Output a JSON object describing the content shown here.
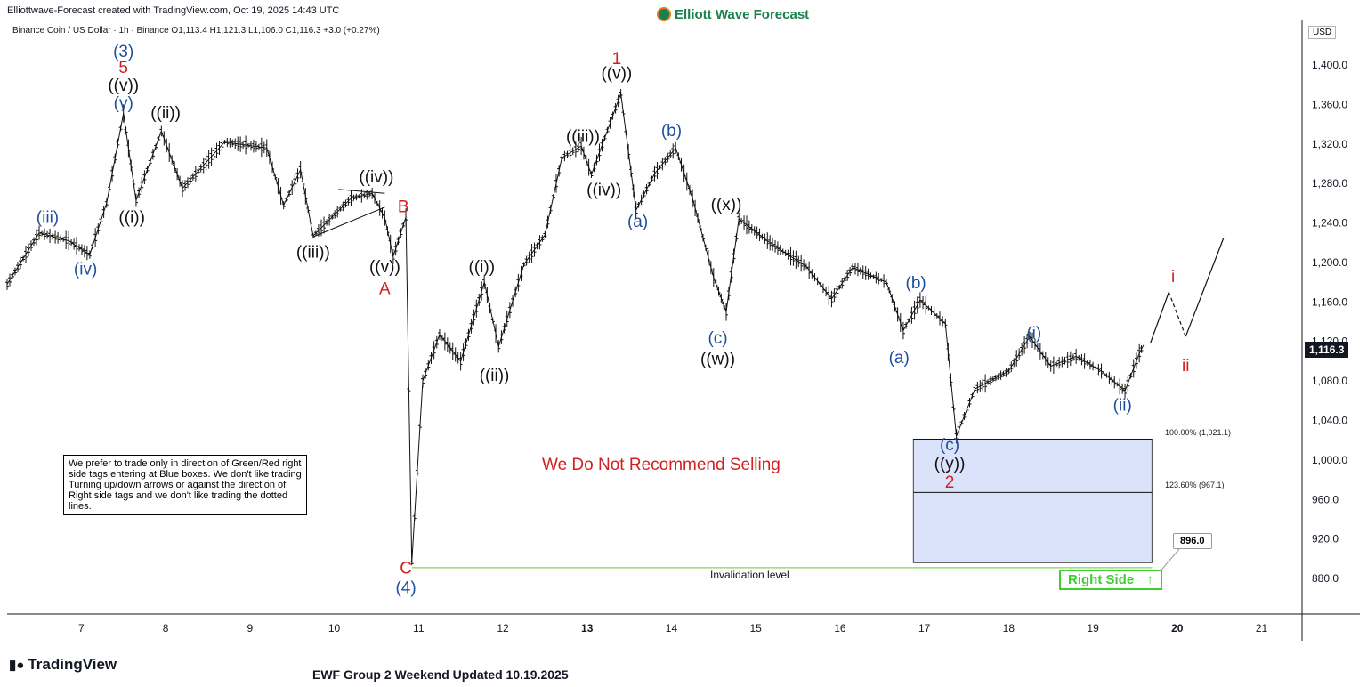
{
  "header": {
    "created_by": "Elliottwave-Forecast created with TradingView.com, Oct 19, 2025 14:43 UTC",
    "brand": "Elliott Wave Forecast",
    "symbol_line": "Binance Coin / US Dollar · 1h · Binance  O1,113.4  H1,121.3  L1,106.0  C1,116.3  +3.0 (+0.27%)"
  },
  "price_axis": {
    "currency": "USD",
    "last_price": "1,116.3"
  },
  "annotations": {
    "disclaimer": "We prefer to trade only in direction of Green/Red right side tags entering at Blue boxes. We don't like trading Turning up/down arrows or against the direction of Right side tags and we don't like trading the dotted lines.",
    "headline": "We Do Not Recommend Selling",
    "invalidation": "Invalidation level",
    "fib_100": "100.00% (1,021.1)",
    "fib_123": "123.60% (967.1)",
    "target": "896.0",
    "right_side": "Right Side",
    "right_side_arrow": "up-arrow-icon"
  },
  "footer": {
    "tv_logo": "TradingView",
    "update": "EWF Group 2 Weekend Updated 10.19.2025"
  },
  "colors": {
    "wave_blue": "#1f4e9c",
    "wave_red": "#d11f1f",
    "wave_black": "#111111",
    "blue_box": "#dbe3fb",
    "right_side_green": "#3ccf2e",
    "invalidation_line": "#7ed957"
  },
  "chart_data": {
    "type": "ohlc-line",
    "title": "Binance Coin / US Dollar · 1h · Binance",
    "xlabel": "",
    "ylabel": "",
    "x_ticks": [
      "7",
      "8",
      "9",
      "10",
      "11",
      "12",
      "13",
      "14",
      "15",
      "16",
      "17",
      "18",
      "19",
      "20",
      "21"
    ],
    "x_range_day": [
      6.12,
      21.48
    ],
    "y_ticks": [
      880,
      920,
      960,
      1000,
      1040,
      1080,
      1120,
      1160,
      1200,
      1240,
      1280,
      1320,
      1360,
      1400
    ],
    "y_tick_labels": [
      "880.0",
      "920.0",
      "960.0",
      "1,000.0",
      "1,040.0",
      "1,080.0",
      "1,120.0",
      "1,160.0",
      "1,200.0",
      "1,240.0",
      "1,280.0",
      "1,320.0",
      "1,360.0",
      "1,400.0"
    ],
    "ylim": [
      844,
      1446
    ],
    "grid": false,
    "price_path": [
      {
        "day": 6.12,
        "price": 1178
      },
      {
        "day": 6.5,
        "price": 1230
      },
      {
        "day": 6.85,
        "price": 1222
      },
      {
        "day": 7.1,
        "price": 1208
      },
      {
        "day": 7.3,
        "price": 1260
      },
      {
        "day": 7.5,
        "price": 1351
      },
      {
        "day": 7.65,
        "price": 1263
      },
      {
        "day": 7.95,
        "price": 1333
      },
      {
        "day": 8.2,
        "price": 1275
      },
      {
        "day": 8.7,
        "price": 1322
      },
      {
        "day": 9.2,
        "price": 1316
      },
      {
        "day": 9.4,
        "price": 1258
      },
      {
        "day": 9.6,
        "price": 1294
      },
      {
        "day": 9.75,
        "price": 1227
      },
      {
        "day": 10.2,
        "price": 1265
      },
      {
        "day": 10.45,
        "price": 1270
      },
      {
        "day": 10.6,
        "price": 1245
      },
      {
        "day": 10.7,
        "price": 1206
      },
      {
        "day": 10.85,
        "price": 1246
      },
      {
        "day": 10.92,
        "price": 896
      },
      {
        "day": 11.05,
        "price": 1080
      },
      {
        "day": 11.25,
        "price": 1127
      },
      {
        "day": 11.5,
        "price": 1100
      },
      {
        "day": 11.78,
        "price": 1180
      },
      {
        "day": 11.95,
        "price": 1115
      },
      {
        "day": 12.25,
        "price": 1198
      },
      {
        "day": 12.5,
        "price": 1228
      },
      {
        "day": 12.7,
        "price": 1306
      },
      {
        "day": 12.93,
        "price": 1318
      },
      {
        "day": 13.05,
        "price": 1289
      },
      {
        "day": 13.4,
        "price": 1371
      },
      {
        "day": 13.58,
        "price": 1253
      },
      {
        "day": 13.8,
        "price": 1290
      },
      {
        "day": 14.05,
        "price": 1316
      },
      {
        "day": 14.25,
        "price": 1265
      },
      {
        "day": 14.5,
        "price": 1185
      },
      {
        "day": 14.65,
        "price": 1150
      },
      {
        "day": 14.8,
        "price": 1244
      },
      {
        "day": 15.2,
        "price": 1218
      },
      {
        "day": 15.6,
        "price": 1196
      },
      {
        "day": 15.9,
        "price": 1163
      },
      {
        "day": 16.15,
        "price": 1195
      },
      {
        "day": 16.55,
        "price": 1180
      },
      {
        "day": 16.75,
        "price": 1131
      },
      {
        "day": 16.95,
        "price": 1162
      },
      {
        "day": 17.25,
        "price": 1138
      },
      {
        "day": 17.38,
        "price": 1024
      },
      {
        "day": 17.6,
        "price": 1072
      },
      {
        "day": 18.0,
        "price": 1090
      },
      {
        "day": 18.25,
        "price": 1125
      },
      {
        "day": 18.5,
        "price": 1095
      },
      {
        "day": 18.8,
        "price": 1105
      },
      {
        "day": 19.1,
        "price": 1090
      },
      {
        "day": 19.38,
        "price": 1070
      },
      {
        "day": 19.55,
        "price": 1108
      },
      {
        "day": 19.6,
        "price": 1116.3
      }
    ],
    "projection": [
      {
        "day": 19.68,
        "price": 1118
      },
      {
        "day": 19.9,
        "price": 1170
      },
      {
        "day": 20.1,
        "price": 1125
      },
      {
        "day": 20.55,
        "price": 1225
      }
    ],
    "triangle": {
      "upper": [
        {
          "day": 10.05,
          "price": 1274
        },
        {
          "day": 10.6,
          "price": 1270
        }
      ],
      "lower": [
        {
          "day": 9.75,
          "price": 1226
        },
        {
          "day": 10.6,
          "price": 1256
        }
      ]
    },
    "blue_box": {
      "day_start": 16.87,
      "day_end": 19.7,
      "price_high": 1021.1,
      "price_low": 896.0
    },
    "fib_levels": [
      1021.1,
      967.1
    ],
    "invalidation_level": 891,
    "wave_labels": [
      {
        "text": "(3)",
        "day": 7.5,
        "price": 1408,
        "color": "blue"
      },
      {
        "text": "5",
        "day": 7.5,
        "price": 1392,
        "color": "red"
      },
      {
        "text": "((v))",
        "day": 7.5,
        "price": 1374,
        "color": "black"
      },
      {
        "text": "(v)",
        "day": 7.5,
        "price": 1356,
        "color": "blue"
      },
      {
        "text": "((ii))",
        "day": 8.0,
        "price": 1346,
        "color": "black"
      },
      {
        "text": "(iii)",
        "day": 6.6,
        "price": 1240,
        "color": "blue"
      },
      {
        "text": "(iv)",
        "day": 7.05,
        "price": 1188,
        "color": "blue"
      },
      {
        "text": "((i))",
        "day": 7.6,
        "price": 1240,
        "color": "black"
      },
      {
        "text": "((iii))",
        "day": 9.75,
        "price": 1205,
        "color": "black"
      },
      {
        "text": "((iv))",
        "day": 10.5,
        "price": 1281,
        "color": "black"
      },
      {
        "text": "B",
        "day": 10.82,
        "price": 1251,
        "color": "red"
      },
      {
        "text": "((v))",
        "day": 10.6,
        "price": 1190,
        "color": "black"
      },
      {
        "text": "A",
        "day": 10.6,
        "price": 1168,
        "color": "red"
      },
      {
        "text": "C",
        "day": 10.85,
        "price": 885,
        "color": "red"
      },
      {
        "text": "(4)",
        "day": 10.85,
        "price": 865,
        "color": "blue"
      },
      {
        "text": "((i))",
        "day": 11.75,
        "price": 1190,
        "color": "black"
      },
      {
        "text": "((ii))",
        "day": 11.9,
        "price": 1080,
        "color": "black"
      },
      {
        "text": "((iii))",
        "day": 12.95,
        "price": 1322,
        "color": "black"
      },
      {
        "text": "((iv))",
        "day": 13.2,
        "price": 1268,
        "color": "black"
      },
      {
        "text": "1",
        "day": 13.35,
        "price": 1401,
        "color": "red"
      },
      {
        "text": "((v))",
        "day": 13.35,
        "price": 1386,
        "color": "black"
      },
      {
        "text": "(a)",
        "day": 13.6,
        "price": 1236,
        "color": "blue"
      },
      {
        "text": "(b)",
        "day": 14.0,
        "price": 1328,
        "color": "blue"
      },
      {
        "text": "((x))",
        "day": 14.65,
        "price": 1253,
        "color": "black"
      },
      {
        "text": "(c)",
        "day": 14.55,
        "price": 1118,
        "color": "blue"
      },
      {
        "text": "((w))",
        "day": 14.55,
        "price": 1097,
        "color": "black"
      },
      {
        "text": "(b)",
        "day": 16.9,
        "price": 1174,
        "color": "blue"
      },
      {
        "text": "(a)",
        "day": 16.7,
        "price": 1098,
        "color": "blue"
      },
      {
        "text": "(i)",
        "day": 18.3,
        "price": 1123,
        "color": "blue"
      },
      {
        "text": "(ii)",
        "day": 19.35,
        "price": 1050,
        "color": "blue"
      },
      {
        "text": "(c)",
        "day": 17.3,
        "price": 1010,
        "color": "blue"
      },
      {
        "text": "((y))",
        "day": 17.3,
        "price": 991,
        "color": "black"
      },
      {
        "text": "2",
        "day": 17.3,
        "price": 972,
        "color": "red"
      },
      {
        "text": "i",
        "day": 19.95,
        "price": 1180,
        "color": "red"
      },
      {
        "text": "ii",
        "day": 20.1,
        "price": 1090,
        "color": "red"
      }
    ]
  }
}
